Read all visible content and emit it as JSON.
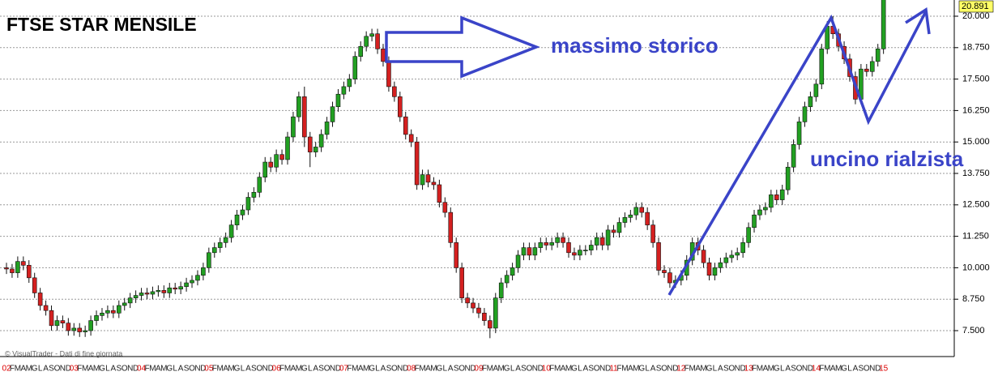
{
  "chart_data": {
    "type": "candlestick",
    "title": "FTSE STAR MENSILE",
    "annotations": [
      "massimo storico",
      "uncino rialzista"
    ],
    "source": "© VisualTrader - Dati di fine giornata",
    "categories": [
      "02",
      "F",
      "M",
      "A",
      "M",
      "G",
      "L",
      "A",
      "S",
      "O",
      "N",
      "D",
      "03",
      "F",
      "M",
      "A",
      "M",
      "G",
      "L",
      "A",
      "S",
      "O",
      "N",
      "D",
      "04",
      "F",
      "M",
      "A",
      "M",
      "G",
      "L",
      "A",
      "S",
      "O",
      "N",
      "D",
      "05",
      "F",
      "M",
      "A",
      "M",
      "G",
      "L",
      "A",
      "S",
      "O",
      "N",
      "D",
      "06",
      "F",
      "M",
      "A",
      "M",
      "G",
      "L",
      "A",
      "S",
      "O",
      "N",
      "D",
      "07",
      "F",
      "M",
      "A",
      "M",
      "G",
      "L",
      "A",
      "S",
      "O",
      "N",
      "D",
      "08",
      "F",
      "M",
      "A",
      "M",
      "G",
      "L",
      "A",
      "S",
      "O",
      "N",
      "D",
      "09",
      "F",
      "M",
      "A",
      "M",
      "G",
      "L",
      "A",
      "S",
      "O",
      "N",
      "D",
      "10",
      "F",
      "M",
      "A",
      "M",
      "G",
      "L",
      "A",
      "S",
      "O",
      "N",
      "D",
      "11",
      "F",
      "M",
      "A",
      "M",
      "G",
      "L",
      "A",
      "S",
      "O",
      "N",
      "D",
      "12",
      "F",
      "M",
      "A",
      "M",
      "G",
      "L",
      "A",
      "S",
      "O",
      "N",
      "D",
      "13",
      "F",
      "M",
      "A",
      "M",
      "G",
      "L",
      "A",
      "S",
      "O",
      "N",
      "D",
      "14",
      "F",
      "M",
      "A",
      "M",
      "G",
      "L",
      "A",
      "S",
      "O",
      "N",
      "D",
      "15"
    ],
    "open": [
      10000,
      9950,
      9800,
      10250,
      10100,
      9600,
      9000,
      8500,
      8300,
      7700,
      7900,
      7800,
      7500,
      7600,
      7450,
      7500,
      7900,
      8100,
      8200,
      8300,
      8200,
      8500,
      8600,
      8800,
      8900,
      9000,
      8950,
      9050,
      9100,
      9000,
      9200,
      9150,
      9250,
      9400,
      9500,
      9700,
      10000,
      10600,
      10800,
      11000,
      11200,
      11700,
      12100,
      12300,
      12800,
      13000,
      13600,
      14200,
      14000,
      14500,
      14300,
      15200,
      16000,
      16800,
      15200,
      14600,
      14800,
      15300,
      15800,
      16400,
      16900,
      17200,
      17500,
      18400,
      18800,
      19200,
      19300,
      18700,
      18200,
      17200,
      16800,
      16000,
      15300,
      15000,
      13300,
      13700,
      13400,
      13300,
      12600,
      12200,
      11000,
      10000,
      8800,
      8600,
      8400,
      8200,
      7900,
      7600,
      8800,
      9400,
      9700,
      10000,
      10500,
      10800,
      10500,
      10800,
      11000,
      10900,
      11000,
      11200,
      11000,
      10600,
      10500,
      10700,
      10700,
      10900,
      11200,
      10900,
      11500,
      11400,
      11800,
      12000,
      12100,
      12400,
      12200,
      11700,
      11000,
      9900,
      9800,
      9400,
      9500,
      9700,
      10300,
      11000,
      10700,
      10200,
      9700,
      10000,
      10200,
      10400,
      10500,
      10600,
      11000,
      11600,
      12100,
      12300,
      12400,
      12900,
      12700,
      13100,
      14000,
      14900,
      15800,
      16400,
      16800,
      17300,
      18700,
      19600,
      19300,
      18800,
      18300,
      17600,
      16700,
      17900,
      17800,
      18200,
      18700
    ],
    "high": [
      10200,
      10150,
      10450,
      10450,
      10300,
      9800,
      9200,
      8700,
      8500,
      8100,
      8100,
      8000,
      7800,
      7800,
      7700,
      8100,
      8300,
      8400,
      8500,
      8500,
      8700,
      8800,
      9000,
      9100,
      9200,
      9200,
      9250,
      9300,
      9300,
      9400,
      9400,
      9450,
      9600,
      9700,
      9900,
      10200,
      10800,
      11000,
      11200,
      11400,
      11900,
      12300,
      12500,
      13000,
      13200,
      13800,
      14400,
      14400,
      14700,
      14700,
      15400,
      16200,
      17000,
      17200,
      15400,
      15000,
      15500,
      16000,
      16600,
      17100,
      17400,
      17700,
      18600,
      19000,
      19400,
      19500,
      19500,
      18900,
      18400,
      17400,
      17000,
      16200,
      15500,
      15200,
      13900,
      13900,
      13600,
      13500,
      12800,
      12400,
      11200,
      10200,
      9000,
      8800,
      8600,
      8400,
      8100,
      9000,
      9600,
      9900,
      10200,
      10700,
      11000,
      11000,
      11000,
      11200,
      11200,
      11200,
      11400,
      11400,
      11200,
      10800,
      10900,
      10900,
      11100,
      11400,
      11400,
      11700,
      11700,
      12000,
      12200,
      12300,
      12600,
      12600,
      12400,
      11900,
      11200,
      10100,
      10000,
      9700,
      9900,
      10500,
      11200,
      11200,
      10900,
      10400,
      10200,
      10400,
      10600,
      10700,
      10800,
      11200,
      11800,
      12300,
      12500,
      12600,
      13100,
      13100,
      13300,
      14200,
      15100,
      16000,
      16600,
      17000,
      17500,
      18900,
      19800,
      20000,
      19500,
      19000,
      18500,
      17800,
      18100,
      18100,
      18400,
      18900,
      20891
    ],
    "low": [
      9750,
      9600,
      9600,
      9900,
      9400,
      8800,
      8300,
      8100,
      7500,
      7500,
      7600,
      7300,
      7300,
      7250,
      7250,
      7300,
      7700,
      7900,
      8000,
      8000,
      8000,
      8300,
      8400,
      8600,
      8700,
      8750,
      8750,
      8850,
      8800,
      8800,
      8950,
      8950,
      9050,
      9200,
      9300,
      9500,
      9800,
      10400,
      10600,
      10800,
      11000,
      11500,
      11900,
      12100,
      12600,
      12800,
      13400,
      13800,
      13800,
      14100,
      14100,
      15000,
      15800,
      14800,
      14000,
      14400,
      14600,
      15100,
      15600,
      16200,
      16700,
      17000,
      17300,
      18200,
      18600,
      19000,
      18500,
      18000,
      17000,
      16600,
      15800,
      15100,
      14800,
      13100,
      13100,
      13200,
      13100,
      12400,
      12000,
      10800,
      9800,
      8600,
      8400,
      8200,
      8000,
      7700,
      7200,
      7400,
      8600,
      9200,
      9500,
      9800,
      10300,
      10300,
      10300,
      10600,
      10700,
      10700,
      10800,
      10800,
      10400,
      10300,
      10300,
      10500,
      10500,
      10700,
      10700,
      10700,
      11200,
      11200,
      11600,
      11800,
      11900,
      12000,
      11500,
      10800,
      9700,
      9600,
      9200,
      9200,
      9300,
      9500,
      10100,
      10500,
      10000,
      9500,
      9500,
      9800,
      10000,
      10200,
      10300,
      10400,
      10800,
      11400,
      11900,
      12100,
      12200,
      12500,
      12500,
      12900,
      13800,
      14700,
      15600,
      16200,
      16600,
      17100,
      18500,
      19100,
      18600,
      18100,
      17400,
      16500,
      16500,
      17600,
      17600,
      18000,
      18500
    ],
    "close": [
      9950,
      9800,
      10250,
      10100,
      9600,
      9000,
      8500,
      8300,
      7700,
      7900,
      7800,
      7500,
      7600,
      7450,
      7500,
      7900,
      8100,
      8200,
      8300,
      8200,
      8500,
      8600,
      8800,
      8900,
      9000,
      8950,
      9050,
      9100,
      9000,
      9200,
      9150,
      9250,
      9400,
      9500,
      9700,
      10000,
      10600,
      10800,
      11000,
      11200,
      11700,
      12100,
      12300,
      12800,
      13000,
      13600,
      14200,
      14000,
      14500,
      14300,
      15200,
      16000,
      16800,
      15200,
      14600,
      14800,
      15300,
      15800,
      16400,
      16900,
      17200,
      17500,
      18400,
      18800,
      19200,
      19300,
      18700,
      18200,
      17200,
      16800,
      16000,
      15300,
      15000,
      13300,
      13700,
      13400,
      13300,
      12600,
      12200,
      11000,
      10000,
      8800,
      8600,
      8400,
      8200,
      7900,
      7600,
      8800,
      9400,
      9700,
      10000,
      10500,
      10800,
      10500,
      10800,
      11000,
      10900,
      11000,
      11200,
      11000,
      10600,
      10500,
      10700,
      10700,
      10900,
      11200,
      10900,
      11500,
      11400,
      11800,
      12000,
      12100,
      12400,
      12200,
      11700,
      11000,
      9900,
      9800,
      9400,
      9500,
      9700,
      10300,
      11000,
      10700,
      10200,
      9700,
      10000,
      10200,
      10400,
      10500,
      10600,
      11000,
      11600,
      12100,
      12300,
      12400,
      12900,
      12700,
      13100,
      14000,
      14900,
      15800,
      16400,
      16800,
      17300,
      18700,
      19600,
      19300,
      18800,
      18300,
      17600,
      16700,
      17900,
      17800,
      18200,
      18700,
      20891
    ],
    "up_color": "#22a022",
    "down_color": "#d42020",
    "last_price": {
      "value": 20891,
      "label": "20.891"
    },
    "ylim": [
      6470,
      20644
    ],
    "yticks": [
      {
        "value": 7500,
        "label": "7.500"
      },
      {
        "value": 8750,
        "label": "8.750"
      },
      {
        "value": 10000,
        "label": "10.000"
      },
      {
        "value": 11250,
        "label": "11.250"
      },
      {
        "value": 12500,
        "label": "12.500"
      },
      {
        "value": 13750,
        "label": "13.750"
      },
      {
        "value": 15000,
        "label": "15.000"
      },
      {
        "value": 16250,
        "label": "16.250"
      },
      {
        "value": 17500,
        "label": "17.500"
      },
      {
        "value": 18750,
        "label": "18.750"
      },
      {
        "value": 20000,
        "label": "20.000"
      }
    ],
    "grid": true
  }
}
